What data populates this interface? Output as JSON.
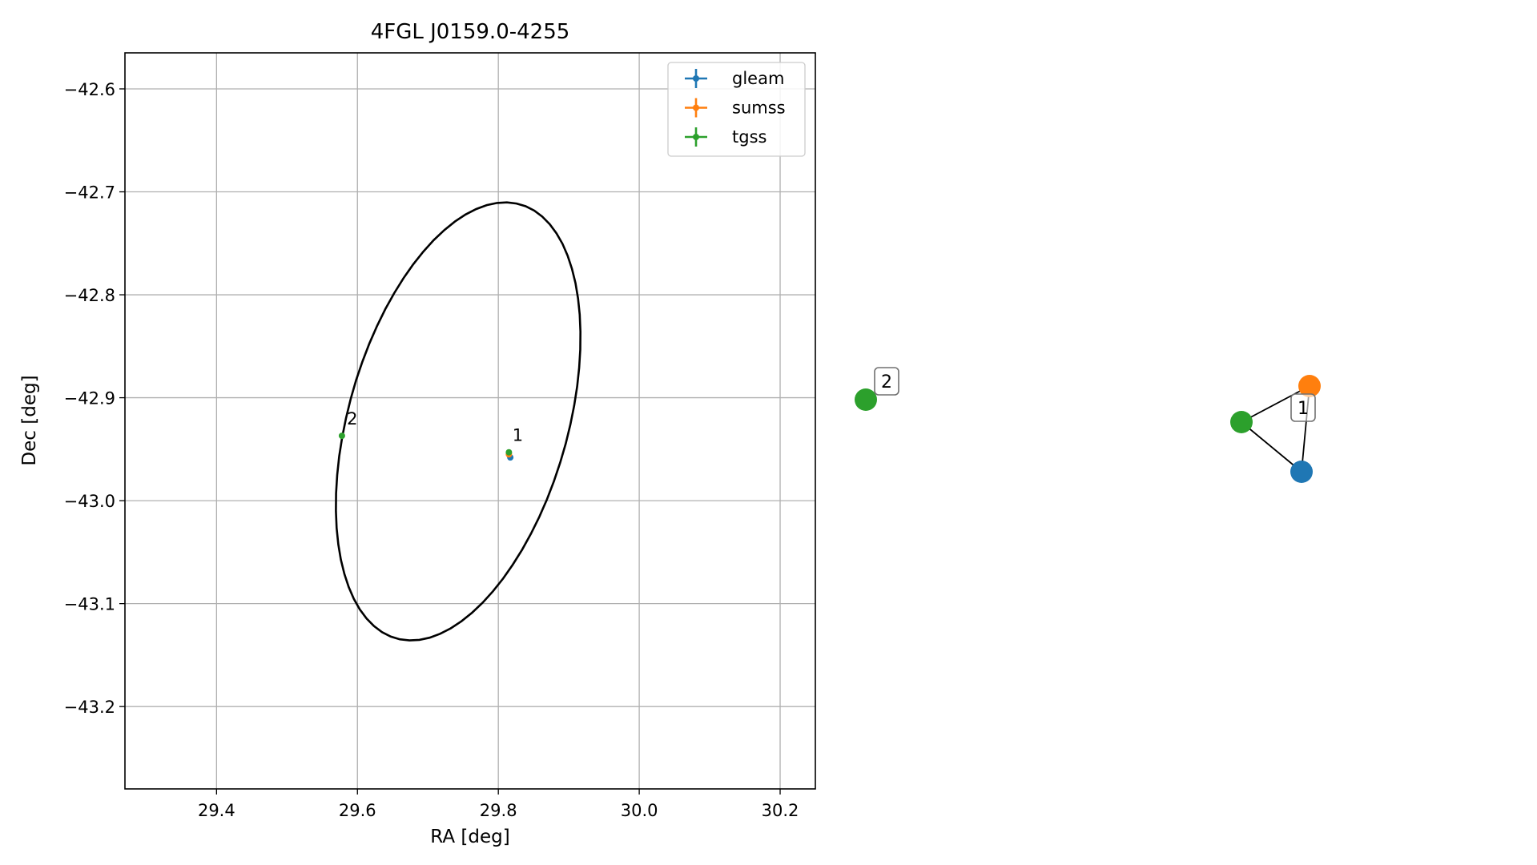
{
  "chart_data": [
    {
      "type": "scatter",
      "title": "4FGL J0159.0-4255",
      "xlabel": "RA [deg]",
      "ylabel": "Dec [deg]",
      "xlim": [
        29.27,
        30.25
      ],
      "ylim": [
        -43.28,
        -42.565
      ],
      "x_ticks": [
        29.4,
        29.6,
        29.8,
        30.0,
        30.2
      ],
      "x_tick_labels": [
        "29.4",
        "29.6",
        "29.8",
        "30.0",
        "30.2"
      ],
      "y_ticks": [
        -42.6,
        -42.7,
        -42.8,
        -42.9,
        -43.0,
        -43.1,
        -43.2
      ],
      "y_tick_labels": [
        "−42.6",
        "−42.7",
        "−42.8",
        "−42.9",
        "−43.0",
        "−43.1",
        "−43.2"
      ],
      "grid": true,
      "legend_position": "top-right",
      "series": [
        {
          "name": "gleam",
          "color": "#1f77b4",
          "points": [
            {
              "x": 29.817,
              "y": -42.958
            }
          ]
        },
        {
          "name": "sumss",
          "color": "#ff7f0e",
          "points": [
            {
              "x": 29.815,
              "y": -42.955
            }
          ]
        },
        {
          "name": "tgss",
          "color": "#2ca02c",
          "points": [
            {
              "x": 29.815,
              "y": -42.953
            },
            {
              "x": 29.578,
              "y": -42.937
            }
          ]
        }
      ],
      "annotations": [
        {
          "text": "1",
          "x": 29.82,
          "y": -42.942
        },
        {
          "text": "2",
          "x": 29.585,
          "y": -42.926
        }
      ],
      "ellipse": {
        "center": [
          29.743,
          -42.923
        ],
        "semi_major_deg": 0.232,
        "semi_minor_deg": 0.147,
        "angle_deg_from_dec_axis": 31,
        "color": "#000000"
      }
    },
    {
      "type": "network",
      "nodes": [
        {
          "id": "tgss-2",
          "color": "#2ca02c"
        },
        {
          "id": "sumss-1",
          "color": "#ff7f0e"
        },
        {
          "id": "tgss-1",
          "color": "#2ca02c"
        },
        {
          "id": "gleam-1",
          "color": "#1f77b4"
        }
      ],
      "edges": [
        [
          "tgss-1",
          "sumss-1"
        ],
        [
          "tgss-1",
          "gleam-1"
        ],
        [
          "sumss-1",
          "gleam-1"
        ]
      ],
      "labels": [
        "2",
        "1"
      ]
    }
  ]
}
